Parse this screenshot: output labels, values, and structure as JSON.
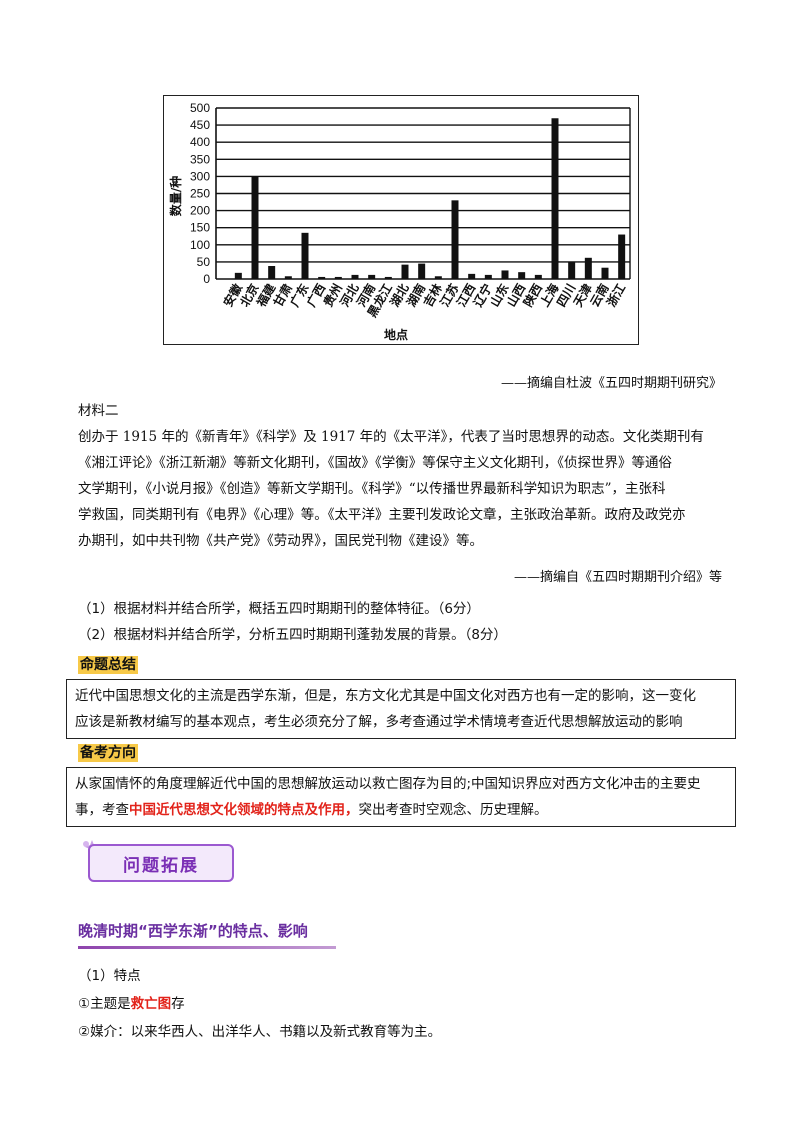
{
  "chart_data": {
    "type": "bar",
    "categories": [
      "安徽",
      "北京",
      "福建",
      "甘肃",
      "广东",
      "广西",
      "贵州",
      "河北",
      "河南",
      "黑龙江",
      "湖北",
      "湖南",
      "吉林",
      "江苏",
      "江西",
      "辽宁",
      "山东",
      "山西",
      "陕西",
      "上海",
      "四川",
      "天津",
      "云南",
      "浙江"
    ],
    "values": [
      18,
      300,
      38,
      8,
      135,
      6,
      6,
      12,
      12,
      6,
      42,
      45,
      8,
      230,
      15,
      12,
      25,
      20,
      12,
      470,
      50,
      62,
      33,
      130
    ],
    "ylim": [
      0,
      500
    ],
    "yticks": [
      0,
      50,
      100,
      150,
      200,
      250,
      300,
      350,
      400,
      450,
      500
    ],
    "ylabel": "数量/种",
    "xlabel": "地点",
    "grid": true
  },
  "source1": "——摘编自杜波《五四时期期刊研究》",
  "material2": {
    "title": "材料二",
    "lines": [
      "创办于 1915 年的《新青年》《科学》及 1917 年的《太平洋》，代表了当时思想界的动态。文化类期刊有",
      "《湘江评论》《浙江新潮》等新文化期刊，《国故》《学衡》等保守主义文化期刊，《侦探世界》等通俗",
      "文学期刊，《小说月报》《创造》等新文学期刊。《科学》“以传播世界最新科学知识为职志”，主张科",
      "学救国，同类期刊有《电界》《心理》等。《太平洋》主要刊发政论文章，主张政治革新。政府及政党亦",
      "办期刊，如中共刊物《共产党》《劳动界》，国民党刊物《建设》等。"
    ],
    "source": "——摘编自《五四时期期刊介绍》等"
  },
  "questions": [
    "（1）根据材料并结合所学，概括五四时期期刊的整体特征。（6分）",
    "（2）根据材料并结合所学，分析五四时期期刊蓬勃发展的背景。（8分）"
  ],
  "summary": {
    "heading": "命题总结",
    "line1": "近代中国思想文化的主流是西学东渐，但是，东方文化尤其是中国文化对西方也有一定的影响，这一变化",
    "line2": "应该是新教材编写的基本观点，考生必须充分了解，多考查通过学术情境考查近代思想解放运动的影响"
  },
  "direction": {
    "heading": "备考方向",
    "line1": "从家国情怀的角度理解近代中国的思想解放运动以救亡图存为目的;中国知识界应对西方文化冲击的主要史",
    "line2_pre": "事，考查",
    "line2_red": "中国近代思想文化领域的特点及作用，",
    "line2_post": "突出考查时空观念、历史理解。"
  },
  "banner": "问题拓展",
  "section_title": "晚清时期“西学东渐”的特点、影响",
  "features": {
    "heading": "（1）特点",
    "item1_pre": "①主题是",
    "item1_red": "救亡图",
    "item1_post": "存",
    "item2": "②媒介：以来华西人、出洋华人、书籍以及新式教育等为主。"
  }
}
